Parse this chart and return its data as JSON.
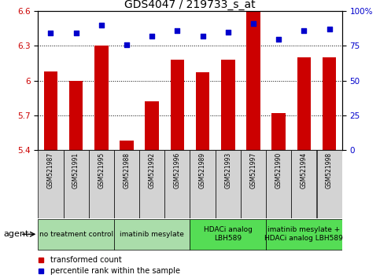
{
  "title": "GDS4047 / 219733_s_at",
  "samples": [
    "GSM521987",
    "GSM521991",
    "GSM521995",
    "GSM521988",
    "GSM521992",
    "GSM521996",
    "GSM521989",
    "GSM521993",
    "GSM521997",
    "GSM521990",
    "GSM521994",
    "GSM521998"
  ],
  "bar_values": [
    6.08,
    6.0,
    6.3,
    5.48,
    5.82,
    6.18,
    6.07,
    6.18,
    6.6,
    5.72,
    6.2,
    6.2
  ],
  "scatter_values": [
    84,
    84,
    90,
    76,
    82,
    86,
    82,
    85,
    91,
    80,
    86,
    87
  ],
  "ylim_left": [
    5.4,
    6.6
  ],
  "ylim_right": [
    0,
    100
  ],
  "yticks_left": [
    5.4,
    5.7,
    6.0,
    6.3,
    6.6
  ],
  "yticks_right": [
    0,
    25,
    50,
    75,
    100
  ],
  "ytick_labels_left": [
    "5.4",
    "5.7",
    "6",
    "6.3",
    "6.6"
  ],
  "ytick_labels_right": [
    "0",
    "25",
    "50",
    "75",
    "100%"
  ],
  "bar_color": "#cc0000",
  "scatter_color": "#0000cc",
  "group_borders": [
    {
      "start": 0,
      "end": 3,
      "label": "no treatment control",
      "color": "#aaddaa"
    },
    {
      "start": 3,
      "end": 6,
      "label": "imatinib mesylate",
      "color": "#aaddaa"
    },
    {
      "start": 6,
      "end": 9,
      "label": "HDACi analog\nLBH589",
      "color": "#55dd55"
    },
    {
      "start": 9,
      "end": 12,
      "label": "imatinib mesylate +\nHDACi analog LBH589",
      "color": "#55dd55"
    }
  ],
  "agent_label": "agent",
  "legend_bar_label": "transformed count",
  "legend_scatter_label": "percentile rank within the sample",
  "tick_color_left": "#cc0000",
  "tick_color_right": "#0000cc",
  "sample_box_color": "#d3d3d3",
  "title_fontsize": 10,
  "tick_fontsize": 7.5,
  "sample_fontsize": 5.5,
  "group_fontsize": 6.5,
  "legend_fontsize": 7
}
